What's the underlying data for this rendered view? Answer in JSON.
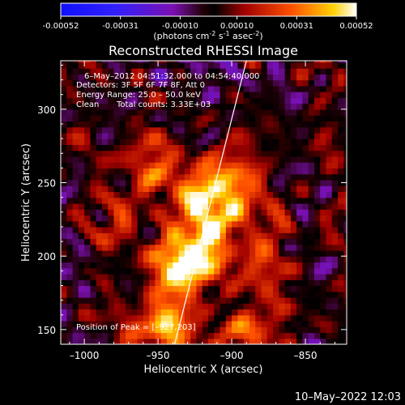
{
  "colorbar": {
    "tick_labels": [
      "-0.00052",
      "-0.00031",
      "-0.00010",
      "0.00010",
      "0.00031",
      "0.00052"
    ],
    "tick_values": [
      -0.00052,
      -0.00031,
      -0.0001,
      0.0001,
      0.00031,
      0.00052
    ],
    "range": [
      -0.00052,
      0.00052
    ],
    "units_prefix": "(photons cm",
    "units_exp1": "-2",
    "units_mid": " s",
    "units_exp2": "-1",
    "units_mid2": " asec",
    "units_exp3": "-2",
    "units_suffix": ")"
  },
  "annotations": {
    "time_range": "6–May–2012 04:51:32.000 to 04:54:40.000",
    "detectors": "Detectors: 3F 5F 6F 7F 8F, Att 0",
    "energy": "Energy Range: 25.0 – 50.0 keV",
    "algorithm": "Clean",
    "total_counts": "Total counts: 3.33E+03",
    "peak": "Position of Peak = [–927,203]"
  },
  "footer": {
    "date": "10–May–2022 12:03"
  },
  "colors": {
    "background": "#000000",
    "text": "#ffffff",
    "limb_line": "#ffffff"
  },
  "chart_data": {
    "type": "heatmap",
    "title": "Reconstructed RHESSI Image",
    "xlabel": "Heliocentric X (arcsec)",
    "ylabel": "Heliocentric Y (arcsec)",
    "xlim": [
      -1016,
      -822
    ],
    "ylim": [
      140,
      333
    ],
    "x_ticks": [
      -1000,
      -950,
      -900,
      -850
    ],
    "x_tick_labels": [
      "–1000",
      "–950",
      "–900",
      "–850"
    ],
    "y_ticks": [
      150,
      200,
      250,
      300
    ],
    "y_tick_labels": [
      "150",
      "200",
      "250",
      "300"
    ],
    "colormap": "rhessi-bluewhite-hot",
    "peak_position": [
      -927,
      203
    ],
    "limb_line": {
      "x": [
        -940,
        -890
      ],
      "y": [
        135,
        333
      ]
    },
    "emission_blobs": [
      {
        "x": -912,
        "y": 237,
        "sx": 24,
        "sy": 24,
        "amp": 0.55
      },
      {
        "x": -932,
        "y": 195,
        "sx": 16,
        "sy": 12,
        "amp": 0.6
      },
      {
        "x": -918,
        "y": 220,
        "sx": 11,
        "sy": 22,
        "amp": 0.4
      },
      {
        "x": -942,
        "y": 170,
        "sx": 12,
        "sy": 16,
        "amp": 0.45
      },
      {
        "x": -955,
        "y": 270,
        "sx": 10,
        "sy": 18,
        "amp": 0.35
      },
      {
        "x": -948,
        "y": 150,
        "sx": 14,
        "sy": 10,
        "amp": 0.45
      },
      {
        "x": -890,
        "y": 150,
        "sx": 18,
        "sy": 12,
        "amp": 0.5
      },
      {
        "x": -877,
        "y": 195,
        "sx": 12,
        "sy": 14,
        "amp": 0.35
      },
      {
        "x": -975,
        "y": 232,
        "sx": 9,
        "sy": 14,
        "amp": 0.3
      },
      {
        "x": -897,
        "y": 260,
        "sx": 8,
        "sy": 12,
        "amp": 0.3
      }
    ],
    "noise_seed": 7,
    "noise_amp": 0.45,
    "grid": false
  }
}
